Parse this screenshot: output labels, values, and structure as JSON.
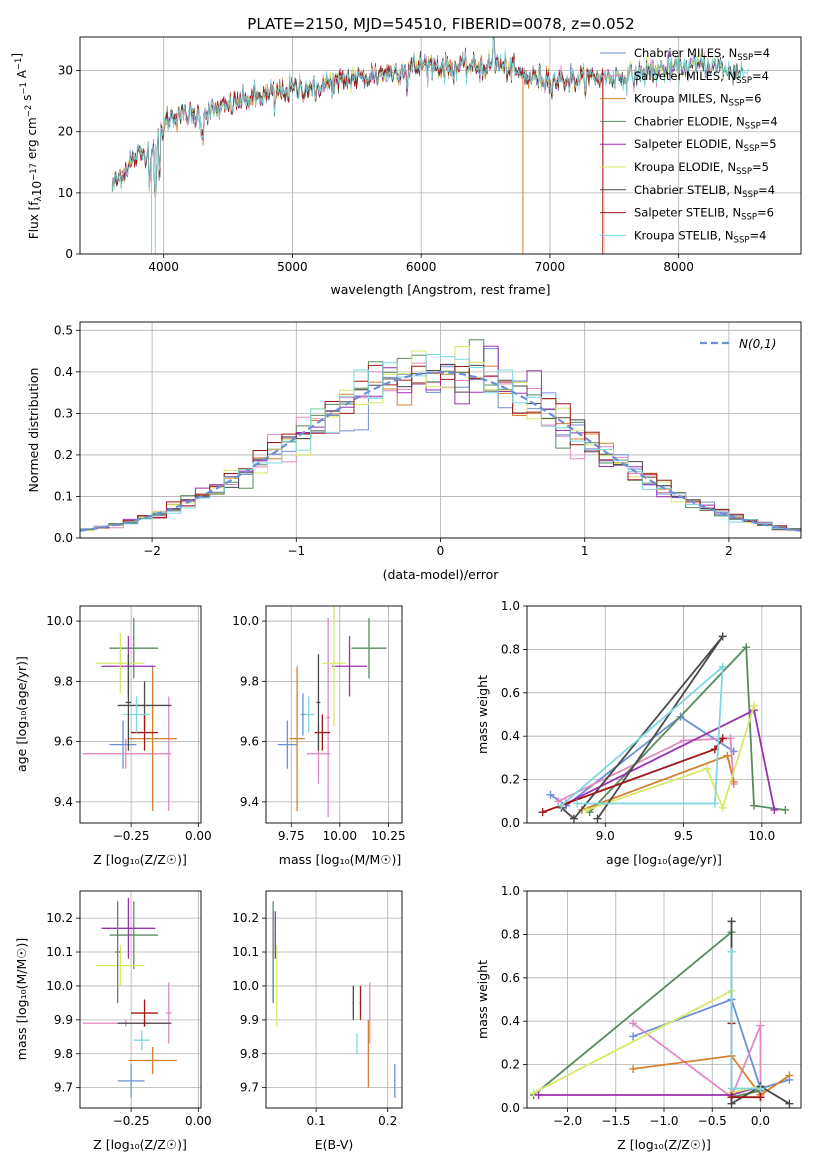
{
  "figure_title": "PLATE=2150, MJD=54510, FIBERID=0078, z=0.052",
  "series": [
    {
      "name": "Chabrier MILES",
      "nssp": "4",
      "color": "#6c8fd6"
    },
    {
      "name": "Salpeter MILES",
      "nssp": "4",
      "color": "#e389c2"
    },
    {
      "name": "Kroupa MILES",
      "nssp": "6",
      "color": "#d5802e"
    },
    {
      "name": "Chabrier ELODIE",
      "nssp": "4",
      "color": "#5a8b5f"
    },
    {
      "name": "Salpeter ELODIE",
      "nssp": "5",
      "color": "#9b30b3"
    },
    {
      "name": "Kroupa ELODIE",
      "nssp": "5",
      "color": "#d8e86a"
    },
    {
      "name": "Chabrier STELIB",
      "nssp": "4",
      "color": "#4a4a4a"
    },
    {
      "name": "Salpeter STELIB",
      "nssp": "6",
      "color": "#a01818"
    },
    {
      "name": "Kroupa STELIB",
      "nssp": "4",
      "color": "#7fd8df"
    }
  ],
  "chart_data": [
    {
      "id": "spectrum",
      "type": "line",
      "title": "PLATE=2150, MJD=54510, FIBERID=0078, z=0.052",
      "xlabel": "wavelength [Angstrom, rest frame]",
      "ylabel_parts": {
        "a": "Flux [f",
        "b": "λ",
        "c": "10",
        "d": "−17",
        "e": " erg cm",
        "f": "−2",
        "g": " s",
        "h": "−1",
        "i": " A",
        "j": "−1",
        "k": "]"
      },
      "xlim": [
        3350,
        8950
      ],
      "ylim": [
        0,
        35.5
      ],
      "xticks": [
        4000,
        5000,
        6000,
        7000,
        8000
      ],
      "yticks": [
        0,
        10,
        20,
        30
      ],
      "legend_position": "top-right",
      "legend_sub": "SSP",
      "legend_prefix": "N",
      "continuum": [
        [
          3600,
          11
        ],
        [
          3700,
          14
        ],
        [
          3800,
          16
        ],
        [
          3900,
          17
        ],
        [
          3950,
          18
        ],
        [
          4000,
          21
        ],
        [
          4100,
          23
        ],
        [
          4200,
          22.5
        ],
        [
          4400,
          23.5
        ],
        [
          4600,
          25
        ],
        [
          4800,
          26
        ],
        [
          5000,
          27
        ],
        [
          5200,
          27.5
        ],
        [
          5400,
          28.5
        ],
        [
          5600,
          29
        ],
        [
          5800,
          30
        ],
        [
          6000,
          31
        ],
        [
          6200,
          30.5
        ],
        [
          6400,
          30.5
        ],
        [
          6600,
          31
        ],
        [
          6800,
          29
        ],
        [
          7000,
          28.5
        ],
        [
          7200,
          28.5
        ],
        [
          7400,
          29
        ],
        [
          7600,
          29
        ],
        [
          7800,
          30
        ],
        [
          8000,
          30.5
        ],
        [
          8200,
          31
        ],
        [
          8400,
          30
        ]
      ],
      "end_wavelength": [
        8100,
        8350,
        7420,
        8500,
        8300,
        8400,
        8500,
        7410,
        8550
      ]
    },
    {
      "id": "residuals",
      "type": "histogram",
      "xlabel": "(data-model)/error",
      "ylabel": "Normed distribution",
      "xlim": [
        -2.5,
        2.5
      ],
      "ylim": [
        0,
        0.52
      ],
      "xticks": [
        -2,
        -1,
        0,
        1,
        2
      ],
      "yticks": [
        0.0,
        0.1,
        0.2,
        0.3,
        0.4,
        0.5
      ],
      "bin_width": 0.1,
      "bin_start": -2.5,
      "legend_label": "N(0,1)",
      "legend_position": "top-right"
    },
    {
      "id": "age-vs-z",
      "type": "scatter",
      "xlabel": "Z [log₁₀(Z/Z☉)]",
      "ylabel": "age  [log₁₀(age/yr)]",
      "xlim": [
        -0.44,
        0.01
      ],
      "ylim": [
        9.33,
        10.05
      ],
      "xticks": [
        -0.25,
        0.0
      ],
      "yticks": [
        9.4,
        9.6,
        9.8,
        10.0
      ],
      "points": [
        {
          "series": 0,
          "x": -0.28,
          "xe": 0.05,
          "y": 9.59,
          "ye": 0.08
        },
        {
          "series": 1,
          "x": -0.11,
          "xe": 0.01,
          "y": 9.56,
          "ye": 0.19
        },
        {
          "series": 1,
          "x": -0.27,
          "xe": 0.16,
          "y": 9.56,
          "ye": 0.05
        },
        {
          "series": 2,
          "x": -0.17,
          "xe": 0.09,
          "y": 9.61,
          "ye": 0.24
        },
        {
          "series": 3,
          "x": -0.24,
          "xe": 0.09,
          "y": 9.91,
          "ye": 0.1
        },
        {
          "series": 4,
          "x": -0.26,
          "xe": 0.1,
          "y": 9.85,
          "ye": 0.1
        },
        {
          "series": 5,
          "x": -0.29,
          "xe": 0.09,
          "y": 9.86,
          "ye": 0.1
        },
        {
          "series": 6,
          "x": -0.2,
          "xe": 0.1,
          "y": 9.72,
          "ye": 0.08
        },
        {
          "series": 7,
          "x": -0.2,
          "xe": 0.05,
          "y": 9.63,
          "ye": 0.06
        },
        {
          "series": 8,
          "x": -0.23,
          "xe": 0.05,
          "y": 9.69,
          "ye": 0.06
        },
        {
          "series": 6,
          "x": -0.26,
          "xe": 0.01,
          "y": 9.73,
          "ye": 0.16
        }
      ]
    },
    {
      "id": "age-vs-mass",
      "type": "scatter",
      "xlabel": "mass [log₁₀(M/M☉)]",
      "ylabel": "",
      "xlim": [
        9.62,
        10.32
      ],
      "ylim": [
        9.33,
        10.05
      ],
      "xticks": [
        9.75,
        10.0,
        10.25
      ],
      "yticks": [
        9.4,
        9.6,
        9.8,
        10.0
      ],
      "points": [
        {
          "series": 0,
          "x": 9.73,
          "xe": 0.05,
          "y": 9.59,
          "ye": 0.08
        },
        {
          "series": 1,
          "x": 9.89,
          "xe": 0.06,
          "y": 9.56,
          "ye": 0.1
        },
        {
          "series": 1,
          "x": 9.94,
          "xe": 0.01,
          "y": 9.68,
          "ye": 0.33
        },
        {
          "series": 2,
          "x": 9.78,
          "xe": 0.04,
          "y": 9.61,
          "ye": 0.24
        },
        {
          "series": 3,
          "x": 10.15,
          "xe": 0.09,
          "y": 9.91,
          "ye": 0.1
        },
        {
          "series": 4,
          "x": 10.05,
          "xe": 0.09,
          "y": 9.85,
          "ye": 0.1
        },
        {
          "series": 5,
          "x": 9.97,
          "xe": 0.06,
          "y": 9.86,
          "ye": 0.21
        },
        {
          "series": 6,
          "x": 9.89,
          "xe": 0.01,
          "y": 9.73,
          "ye": 0.16
        },
        {
          "series": 7,
          "x": 9.91,
          "xe": 0.04,
          "y": 9.63,
          "ye": 0.06
        },
        {
          "series": 8,
          "x": 9.84,
          "xe": 0.03,
          "y": 9.69,
          "ye": 0.06
        },
        {
          "series": 0,
          "x": 9.81,
          "xe": 0.01,
          "y": 9.69,
          "ye": 0.07
        }
      ]
    },
    {
      "id": "massweight-vs-age",
      "type": "line",
      "xlabel": "age  [log₁₀(age/yr)]",
      "ylabel": "mass weight",
      "xlim": [
        8.5,
        10.25
      ],
      "ylim": [
        0,
        1.0
      ],
      "xticks": [
        9.0,
        9.5,
        10.0
      ],
      "yticks": [
        0.0,
        0.2,
        0.4,
        0.6,
        0.8,
        1.0
      ],
      "lines": [
        {
          "series": 0,
          "pts": [
            [
              8.65,
              0.13
            ],
            [
              8.75,
              0.08
            ],
            [
              9.48,
              0.49
            ],
            [
              9.82,
              0.33
            ]
          ]
        },
        {
          "series": 1,
          "pts": [
            [
              8.7,
              0.1
            ],
            [
              9.5,
              0.38
            ],
            [
              9.8,
              0.39
            ],
            [
              9.82,
              0.18
            ]
          ]
        },
        {
          "series": 2,
          "pts": [
            [
              8.85,
              0.06
            ],
            [
              9.78,
              0.31
            ],
            [
              9.82,
              0.19
            ]
          ]
        },
        {
          "series": 3,
          "pts": [
            [
              8.9,
              0.05
            ],
            [
              9.9,
              0.81
            ],
            [
              9.95,
              0.08
            ],
            [
              10.15,
              0.06
            ]
          ]
        },
        {
          "series": 4,
          "pts": [
            [
              8.75,
              0.09
            ],
            [
              9.95,
              0.52
            ],
            [
              10.08,
              0.06
            ]
          ]
        },
        {
          "series": 5,
          "pts": [
            [
              8.88,
              0.06
            ],
            [
              9.65,
              0.25
            ],
            [
              9.75,
              0.07
            ],
            [
              9.95,
              0.54
            ]
          ]
        },
        {
          "series": 6,
          "pts": [
            [
              8.72,
              0.07
            ],
            [
              8.8,
              0.02
            ],
            [
              9.75,
              0.86
            ],
            [
              8.95,
              0.02
            ]
          ]
        },
        {
          "series": 7,
          "pts": [
            [
              8.6,
              0.05
            ],
            [
              9.7,
              0.34
            ],
            [
              9.75,
              0.39
            ]
          ]
        },
        {
          "series": 8,
          "pts": [
            [
              8.72,
              0.08
            ],
            [
              9.75,
              0.72
            ],
            [
              9.7,
              0.09
            ],
            [
              8.82,
              0.09
            ]
          ]
        }
      ]
    },
    {
      "id": "mass-vs-z",
      "type": "scatter",
      "xlabel": "Z [log₁₀(Z/Z☉)]",
      "ylabel": "mass [log₁₀(M/M☉)]",
      "xlim": [
        -0.44,
        0.01
      ],
      "ylim": [
        9.64,
        10.28
      ],
      "xticks": [
        -0.25,
        0.0
      ],
      "yticks": [
        9.7,
        9.8,
        9.9,
        10.0,
        10.1,
        10.2
      ],
      "points": [
        {
          "series": 0,
          "x": -0.25,
          "xe": 0.05,
          "y": 9.72,
          "ye": 0.05
        },
        {
          "series": 1,
          "x": -0.27,
          "xe": 0.16,
          "y": 9.89,
          "ye": 0.01
        },
        {
          "series": 1,
          "x": -0.11,
          "xe": 0.01,
          "y": 9.92,
          "ye": 0.09
        },
        {
          "series": 2,
          "x": -0.17,
          "xe": 0.09,
          "y": 9.78,
          "ye": 0.04
        },
        {
          "series": 3,
          "x": -0.24,
          "xe": 0.09,
          "y": 10.15,
          "ye": 0.1
        },
        {
          "series": 4,
          "x": -0.26,
          "xe": 0.1,
          "y": 10.17,
          "ye": 0.09
        },
        {
          "series": 5,
          "x": -0.29,
          "xe": 0.09,
          "y": 10.06,
          "ye": 0.06
        },
        {
          "series": 6,
          "x": -0.2,
          "xe": 0.1,
          "y": 9.89,
          "ye": 0.01
        },
        {
          "series": 7,
          "x": -0.2,
          "xe": 0.05,
          "y": 9.92,
          "ye": 0.04
        },
        {
          "series": 8,
          "x": -0.21,
          "xe": 0.03,
          "y": 9.84,
          "ye": 0.03
        },
        {
          "series": 3,
          "x": -0.3,
          "xe": 0.01,
          "y": 10.1,
          "ye": 0.15
        }
      ]
    },
    {
      "id": "mass-vs-ebv",
      "type": "scatter",
      "xlabel": "E(B-V)",
      "ylabel": "",
      "xlim": [
        0.03,
        0.22
      ],
      "ylim": [
        9.64,
        10.28
      ],
      "xticks": [
        0.1,
        0.2
      ],
      "yticks": [
        9.7,
        9.8,
        9.9,
        10.0,
        10.1,
        10.2
      ],
      "points": [
        {
          "series": 0,
          "x": 0.21,
          "xe": 0.001,
          "y": 9.72,
          "ye": 0.05
        },
        {
          "series": 1,
          "x": 0.175,
          "xe": 0.001,
          "y": 9.92,
          "ye": 0.09
        },
        {
          "series": 2,
          "x": 0.173,
          "xe": 0.001,
          "y": 9.8,
          "ye": 0.1
        },
        {
          "series": 3,
          "x": 0.04,
          "xe": 0.001,
          "y": 10.1,
          "ye": 0.15
        },
        {
          "series": 4,
          "x": 0.043,
          "xe": 0.001,
          "y": 10.15,
          "ye": 0.07
        },
        {
          "series": 5,
          "x": 0.045,
          "xe": 0.001,
          "y": 10.0,
          "ye": 0.12
        },
        {
          "series": 6,
          "x": 0.152,
          "xe": 0.001,
          "y": 9.95,
          "ye": 0.05
        },
        {
          "series": 7,
          "x": 0.162,
          "xe": 0.001,
          "y": 9.95,
          "ye": 0.05
        },
        {
          "series": 8,
          "x": 0.157,
          "xe": 0.001,
          "y": 9.83,
          "ye": 0.03
        }
      ]
    },
    {
      "id": "massweight-vs-z",
      "type": "line",
      "xlabel": "Z [log₁₀(Z/Z☉)]",
      "ylabel": "mass weight",
      "xlim": [
        -2.42,
        0.42
      ],
      "ylim": [
        0,
        1.0
      ],
      "xticks": [
        -2.0,
        -1.5,
        -1.0,
        -0.5,
        0.0
      ],
      "yticks": [
        0.0,
        0.2,
        0.4,
        0.6,
        0.8,
        1.0
      ],
      "lines": [
        {
          "series": 0,
          "pts": [
            [
              -1.32,
              0.33
            ],
            [
              -0.3,
              0.5
            ],
            [
              0.0,
              0.09
            ],
            [
              0.3,
              0.13
            ]
          ]
        },
        {
          "series": 1,
          "pts": [
            [
              -1.32,
              0.39
            ],
            [
              -0.3,
              0.05
            ],
            [
              0.0,
              0.38
            ],
            [
              0.0,
              0.05
            ]
          ]
        },
        {
          "series": 2,
          "pts": [
            [
              -1.32,
              0.18
            ],
            [
              -0.3,
              0.24
            ],
            [
              0.0,
              0.06
            ],
            [
              0.3,
              0.15
            ]
          ]
        },
        {
          "series": 3,
          "pts": [
            [
              -2.35,
              0.06
            ],
            [
              -0.3,
              0.81
            ],
            [
              -0.3,
              0.05
            ],
            [
              0.0,
              0.08
            ]
          ]
        },
        {
          "series": 4,
          "pts": [
            [
              -2.3,
              0.06
            ],
            [
              -0.3,
              0.06
            ],
            [
              0.0,
              0.1
            ],
            [
              0.0,
              0.05
            ]
          ]
        },
        {
          "series": 5,
          "pts": [
            [
              -2.35,
              0.07
            ],
            [
              -0.3,
              0.54
            ],
            [
              -0.3,
              0.07
            ],
            [
              0.0,
              0.1
            ]
          ]
        },
        {
          "series": 6,
          "pts": [
            [
              -0.3,
              0.86
            ],
            [
              -0.3,
              0.02
            ],
            [
              0.0,
              0.1
            ],
            [
              0.3,
              0.02
            ]
          ]
        },
        {
          "series": 7,
          "pts": [
            [
              -0.3,
              0.39
            ],
            [
              -0.3,
              0.05
            ],
            [
              0.0,
              0.05
            ]
          ]
        },
        {
          "series": 8,
          "pts": [
            [
              -0.3,
              0.72
            ],
            [
              -0.3,
              0.09
            ],
            [
              0.0,
              0.09
            ]
          ]
        }
      ]
    }
  ]
}
